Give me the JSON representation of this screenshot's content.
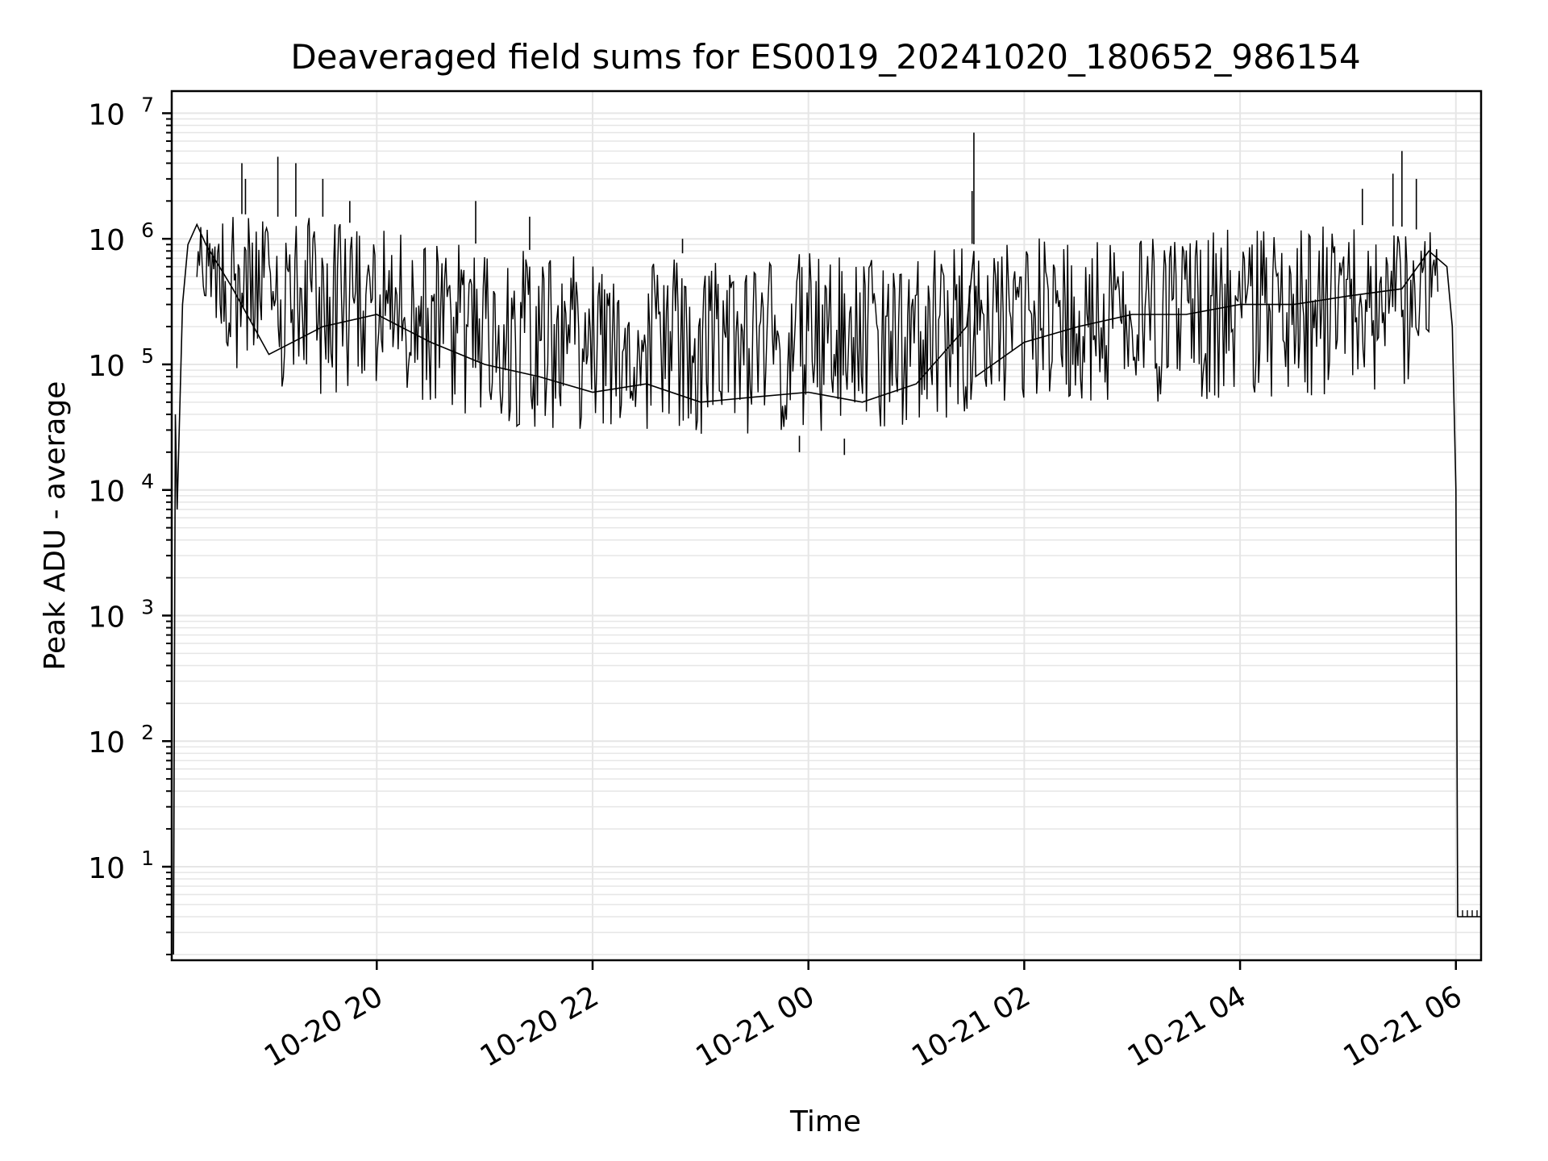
{
  "chart_data": {
    "type": "line",
    "title": "Deaveraged field sums for ES0019_20241020_180652_986154",
    "xlabel": "Time",
    "ylabel": "Peak ADU - average",
    "y_scale": "log",
    "ylim": [
      1.8,
      15000000
    ],
    "xlim": [
      "2024-10-20 18:06",
      "2024-10-21 06:14"
    ],
    "grid": true,
    "line_color": "#000000",
    "grid_color": "#e6e6e6",
    "x_ticks": [
      {
        "value": "2024-10-20 20:00",
        "label": "10-20 20"
      },
      {
        "value": "2024-10-20 22:00",
        "label": "10-20 22"
      },
      {
        "value": "2024-10-21 00:00",
        "label": "10-21 00"
      },
      {
        "value": "2024-10-21 02:00",
        "label": "10-21 02"
      },
      {
        "value": "2024-10-21 04:00",
        "label": "10-21 04"
      },
      {
        "value": "2024-10-21 06:00",
        "label": "10-21 06"
      }
    ],
    "y_ticks": [
      {
        "value": 10,
        "base": "10",
        "exp": "1"
      },
      {
        "value": 100,
        "base": "10",
        "exp": "2"
      },
      {
        "value": 1000,
        "base": "10",
        "exp": "3"
      },
      {
        "value": 10000,
        "base": "10",
        "exp": "4"
      },
      {
        "value": 100000,
        "base": "10",
        "exp": "5"
      },
      {
        "value": 1000000,
        "base": "10",
        "exp": "6"
      },
      {
        "value": 10000000,
        "base": "10",
        "exp": "7"
      }
    ],
    "series": [
      {
        "points": [
          [
            "2024-10-20 18:07",
            2
          ],
          [
            "2024-10-20 18:08",
            40000
          ],
          [
            "2024-10-20 18:09",
            7000
          ],
          [
            "2024-10-20 18:12",
            300000
          ],
          [
            "2024-10-20 18:15",
            900000
          ],
          [
            "2024-10-20 18:20",
            1300000
          ],
          [
            "2024-10-20 18:25",
            900000
          ],
          [
            "2024-10-20 18:40",
            400000
          ],
          [
            "2024-10-20 19:00",
            120000
          ],
          [
            "2024-10-20 19:30",
            200000
          ],
          [
            "2024-10-20 20:00",
            250000
          ],
          [
            "2024-10-20 20:30",
            150000
          ],
          [
            "2024-10-20 21:00",
            100000
          ],
          [
            "2024-10-20 21:30",
            80000
          ],
          [
            "2024-10-20 22:00",
            60000
          ],
          [
            "2024-10-20 22:30",
            70000
          ],
          [
            "2024-10-20 23:00",
            50000
          ],
          [
            "2024-10-20 23:30",
            55000
          ],
          [
            "2024-10-21 00:00",
            60000
          ],
          [
            "2024-10-21 00:30",
            50000
          ],
          [
            "2024-10-21 01:00",
            70000
          ],
          [
            "2024-10-21 01:28",
            200000
          ],
          [
            "2024-10-21 01:32",
            800000
          ],
          [
            "2024-10-21 01:33",
            80000
          ],
          [
            "2024-10-21 02:00",
            150000
          ],
          [
            "2024-10-21 02:30",
            200000
          ],
          [
            "2024-10-21 03:00",
            250000
          ],
          [
            "2024-10-21 03:30",
            250000
          ],
          [
            "2024-10-21 04:00",
            300000
          ],
          [
            "2024-10-21 04:30",
            300000
          ],
          [
            "2024-10-21 05:00",
            350000
          ],
          [
            "2024-10-21 05:30",
            400000
          ],
          [
            "2024-10-21 05:45",
            800000
          ],
          [
            "2024-10-21 05:55",
            600000
          ],
          [
            "2024-10-21 05:58",
            200000
          ],
          [
            "2024-10-21 06:00",
            10000
          ],
          [
            "2024-10-21 06:01",
            4
          ],
          [
            "2024-10-21 06:14",
            4
          ]
        ],
        "envelope": [
          {
            "t": "2024-10-20 18:20",
            "lo": 400000,
            "hi": 1300000
          },
          {
            "t": "2024-10-20 18:40",
            "lo": 100000,
            "hi": 1600000
          },
          {
            "t": "2024-10-20 19:00",
            "lo": 50000,
            "hi": 1500000
          },
          {
            "t": "2024-10-20 19:30",
            "lo": 55000,
            "hi": 1500000
          },
          {
            "t": "2024-10-20 20:00",
            "lo": 60000,
            "hi": 1200000
          },
          {
            "t": "2024-10-20 20:30",
            "lo": 45000,
            "hi": 1000000
          },
          {
            "t": "2024-10-20 21:00",
            "lo": 35000,
            "hi": 900000
          },
          {
            "t": "2024-10-20 21:30",
            "lo": 30000,
            "hi": 800000
          },
          {
            "t": "2024-10-20 22:00",
            "lo": 30000,
            "hi": 700000
          },
          {
            "t": "2024-10-20 22:30",
            "lo": 30000,
            "hi": 800000
          },
          {
            "t": "2024-10-20 23:00",
            "lo": 28000,
            "hi": 750000
          },
          {
            "t": "2024-10-20 23:30",
            "lo": 27000,
            "hi": 750000
          },
          {
            "t": "2024-10-21 00:00",
            "lo": 27000,
            "hi": 800000
          },
          {
            "t": "2024-10-21 00:30",
            "lo": 25000,
            "hi": 750000
          },
          {
            "t": "2024-10-21 01:00",
            "lo": 32000,
            "hi": 800000
          },
          {
            "t": "2024-10-21 01:25",
            "lo": 40000,
            "hi": 950000
          },
          {
            "t": "2024-10-21 01:33",
            "lo": 50000,
            "hi": 900000
          },
          {
            "t": "2024-10-21 02:00",
            "lo": 50000,
            "hi": 1000000
          },
          {
            "t": "2024-10-21 02:30",
            "lo": 50000,
            "hi": 1050000
          },
          {
            "t": "2024-10-21 03:00",
            "lo": 50000,
            "hi": 1100000
          },
          {
            "t": "2024-10-21 03:30",
            "lo": 50000,
            "hi": 1150000
          },
          {
            "t": "2024-10-21 04:00",
            "lo": 55000,
            "hi": 1200000
          },
          {
            "t": "2024-10-21 04:30",
            "lo": 55000,
            "hi": 1250000
          },
          {
            "t": "2024-10-21 05:00",
            "lo": 55000,
            "hi": 1300000
          },
          {
            "t": "2024-10-21 05:30",
            "lo": 60000,
            "hi": 1250000
          },
          {
            "t": "2024-10-21 05:50",
            "lo": 200000,
            "hi": 1100000
          }
        ],
        "spikes": [
          [
            "2024-10-20 18:45",
            4000000
          ],
          [
            "2024-10-20 18:47",
            3000000
          ],
          [
            "2024-10-20 19:05",
            4500000
          ],
          [
            "2024-10-20 19:15",
            4000000
          ],
          [
            "2024-10-20 19:30",
            3000000
          ],
          [
            "2024-10-20 19:45",
            2000000
          ],
          [
            "2024-10-20 20:55",
            2000000
          ],
          [
            "2024-10-20 21:25",
            1500000
          ],
          [
            "2024-10-20 22:50",
            1000000
          ],
          [
            "2024-10-21 01:32",
            7000000
          ],
          [
            "2024-10-21 01:31",
            2400000
          ],
          [
            "2024-10-21 05:08",
            2500000
          ],
          [
            "2024-10-21 05:25",
            3300000
          ],
          [
            "2024-10-21 05:30",
            5000000
          ],
          [
            "2024-10-21 05:38",
            3000000
          ]
        ],
        "dips": [
          [
            "2024-10-21 00:20",
            19000
          ],
          [
            "2024-10-20 23:55",
            20000
          ]
        ]
      }
    ]
  }
}
